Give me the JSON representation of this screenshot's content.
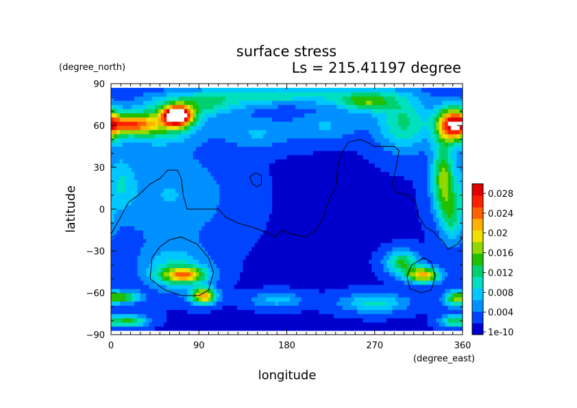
{
  "chart_data": {
    "type": "heatmap",
    "title": "surface stress",
    "subtitle": "Ls = 215.41197 degree",
    "xlabel": "longitude",
    "ylabel": "latitude",
    "x_units": "(degree_east)",
    "y_units": "(degree_north)",
    "xlim": [
      0,
      360
    ],
    "ylim": [
      -90,
      90
    ],
    "x_ticks": [
      "0",
      "90",
      "180",
      "270",
      "360"
    ],
    "y_ticks": [
      "90",
      "60",
      "30",
      "0",
      "−30",
      "−60",
      "−90"
    ],
    "x_tick_values": [
      0,
      90,
      180,
      270,
      360
    ],
    "y_tick_values": [
      90,
      60,
      30,
      0,
      -30,
      -60,
      -90
    ],
    "colorbar": {
      "labels": [
        "0.028",
        "0.024",
        "0.02",
        "0.016",
        "0.012",
        "0.008",
        "0.004",
        "1e-10"
      ],
      "label_values": [
        0.028,
        0.024,
        0.02,
        0.016,
        0.012,
        0.008,
        0.004,
        0.0
      ],
      "min": 0.0,
      "max": 0.03,
      "colors": [
        "#0000cd",
        "#0044ff",
        "#0090ff",
        "#00c8ff",
        "#00e0c0",
        "#00d070",
        "#20c000",
        "#90d800",
        "#f0e000",
        "#ffb000",
        "#ff6000",
        "#ff2000",
        "#e00000"
      ]
    },
    "grid": false,
    "data_lat_range": [
      -87,
      87
    ],
    "features": [
      {
        "lon": 68,
        "lat": 67,
        "sigma_lon": 10,
        "sigma_lat": 5,
        "value": 0.03
      },
      {
        "lon": 50,
        "lat": 62,
        "sigma_lon": 28,
        "sigma_lat": 10,
        "value": 0.011
      },
      {
        "lon": 20,
        "lat": 61,
        "sigma_lon": 18,
        "sigma_lat": 5,
        "value": 0.016
      },
      {
        "lon": 95,
        "lat": 75,
        "sigma_lon": 30,
        "sigma_lat": 6,
        "value": 0.008
      },
      {
        "lon": 180,
        "lat": 82,
        "sigma_lon": 70,
        "sigma_lat": 5,
        "value": 0.008
      },
      {
        "lon": 262,
        "lat": 77,
        "sigma_lon": 20,
        "sigma_lat": 5,
        "value": 0.011
      },
      {
        "lon": 300,
        "lat": 62,
        "sigma_lon": 20,
        "sigma_lat": 14,
        "value": 0.01
      },
      {
        "lon": 350,
        "lat": 61,
        "sigma_lon": 12,
        "sigma_lat": 9,
        "value": 0.024
      },
      {
        "lon": 340,
        "lat": 22,
        "sigma_lon": 8,
        "sigma_lat": 18,
        "value": 0.014
      },
      {
        "lon": 350,
        "lat": -5,
        "sigma_lon": 8,
        "sigma_lat": 14,
        "value": 0.008
      },
      {
        "lon": 60,
        "lat": 10,
        "sigma_lon": 45,
        "sigma_lat": 25,
        "value": 0.005
      },
      {
        "lon": 10,
        "lat": 20,
        "sigma_lon": 10,
        "sigma_lat": 15,
        "value": 0.005
      },
      {
        "lon": 75,
        "lat": -47,
        "sigma_lon": 16,
        "sigma_lat": 4,
        "value": 0.016
      },
      {
        "lon": 65,
        "lat": -43,
        "sigma_lon": 25,
        "sigma_lat": 12,
        "value": 0.007
      },
      {
        "lon": 95,
        "lat": -62,
        "sigma_lon": 9,
        "sigma_lat": 4,
        "value": 0.02
      },
      {
        "lon": 12,
        "lat": -63,
        "sigma_lon": 12,
        "sigma_lat": 3,
        "value": 0.013
      },
      {
        "lon": 18,
        "lat": -80,
        "sigma_lon": 14,
        "sigma_lat": 3,
        "value": 0.012
      },
      {
        "lon": 320,
        "lat": -47,
        "sigma_lon": 12,
        "sigma_lat": 4,
        "value": 0.019
      },
      {
        "lon": 298,
        "lat": -38,
        "sigma_lon": 12,
        "sigma_lat": 6,
        "value": 0.012
      },
      {
        "lon": 352,
        "lat": -64,
        "sigma_lon": 8,
        "sigma_lat": 4,
        "value": 0.012
      },
      {
        "lon": 350,
        "lat": -80,
        "sigma_lon": 10,
        "sigma_lat": 3,
        "value": 0.01
      },
      {
        "lon": 270,
        "lat": -67,
        "sigma_lon": 25,
        "sigma_lat": 5,
        "value": 0.008
      },
      {
        "lon": 170,
        "lat": -65,
        "sigma_lon": 20,
        "sigma_lat": 4,
        "value": 0.006
      },
      {
        "lon": 150,
        "lat": 55,
        "sigma_lon": 25,
        "sigma_lat": 8,
        "value": 0.005
      },
      {
        "lon": 220,
        "lat": 60,
        "sigma_lon": 25,
        "sigma_lat": 8,
        "value": 0.005
      }
    ],
    "contours": [
      {
        "name": "topography-contour-main",
        "points": [
          [
            0,
            -18
          ],
          [
            8,
            -8
          ],
          [
            18,
            5
          ],
          [
            28,
            10
          ],
          [
            40,
            18
          ],
          [
            50,
            22
          ],
          [
            58,
            28
          ],
          [
            68,
            28
          ],
          [
            72,
            22
          ],
          [
            74,
            10
          ],
          [
            78,
            0
          ],
          [
            90,
            0
          ],
          [
            100,
            0
          ],
          [
            110,
            0
          ],
          [
            118,
            -6
          ],
          [
            130,
            -10
          ],
          [
            145,
            -13
          ],
          [
            160,
            -17
          ],
          [
            168,
            -20
          ],
          [
            175,
            -15
          ],
          [
            185,
            -18
          ],
          [
            200,
            -20
          ],
          [
            210,
            -15
          ],
          [
            218,
            -5
          ],
          [
            222,
            5
          ],
          [
            225,
            10
          ],
          [
            230,
            15
          ],
          [
            232,
            30
          ],
          [
            236,
            40
          ],
          [
            243,
            48
          ],
          [
            255,
            50
          ],
          [
            265,
            47
          ],
          [
            270,
            45
          ],
          [
            280,
            45
          ],
          [
            290,
            45
          ],
          [
            295,
            42
          ],
          [
            292,
            30
          ],
          [
            288,
            18
          ],
          [
            292,
            12
          ],
          [
            305,
            10
          ],
          [
            312,
            5
          ],
          [
            315,
            -5
          ],
          [
            322,
            -13
          ],
          [
            330,
            -16
          ],
          [
            335,
            -20
          ],
          [
            340,
            -23
          ],
          [
            345,
            -29
          ],
          [
            355,
            -25
          ],
          [
            360,
            -20
          ]
        ]
      },
      {
        "name": "topography-contour-ring-small",
        "points": [
          [
            142,
            23
          ],
          [
            148,
            26
          ],
          [
            154,
            24
          ],
          [
            154,
            18
          ],
          [
            150,
            16
          ],
          [
            145,
            18
          ]
        ]
      },
      {
        "name": "topography-contour-ring-west",
        "points": [
          [
            60,
            -22
          ],
          [
            72,
            -20
          ],
          [
            88,
            -25
          ],
          [
            100,
            -35
          ],
          [
            105,
            -45
          ],
          [
            100,
            -58
          ],
          [
            90,
            -62
          ],
          [
            72,
            -62
          ],
          [
            55,
            -58
          ],
          [
            40,
            -50
          ],
          [
            42,
            -35
          ],
          [
            50,
            -27
          ]
        ]
      },
      {
        "name": "topography-contour-ring-east",
        "points": [
          [
            320,
            -35
          ],
          [
            328,
            -38
          ],
          [
            332,
            -48
          ],
          [
            328,
            -58
          ],
          [
            318,
            -60
          ],
          [
            306,
            -57
          ],
          [
            303,
            -48
          ],
          [
            308,
            -40
          ]
        ]
      }
    ]
  }
}
